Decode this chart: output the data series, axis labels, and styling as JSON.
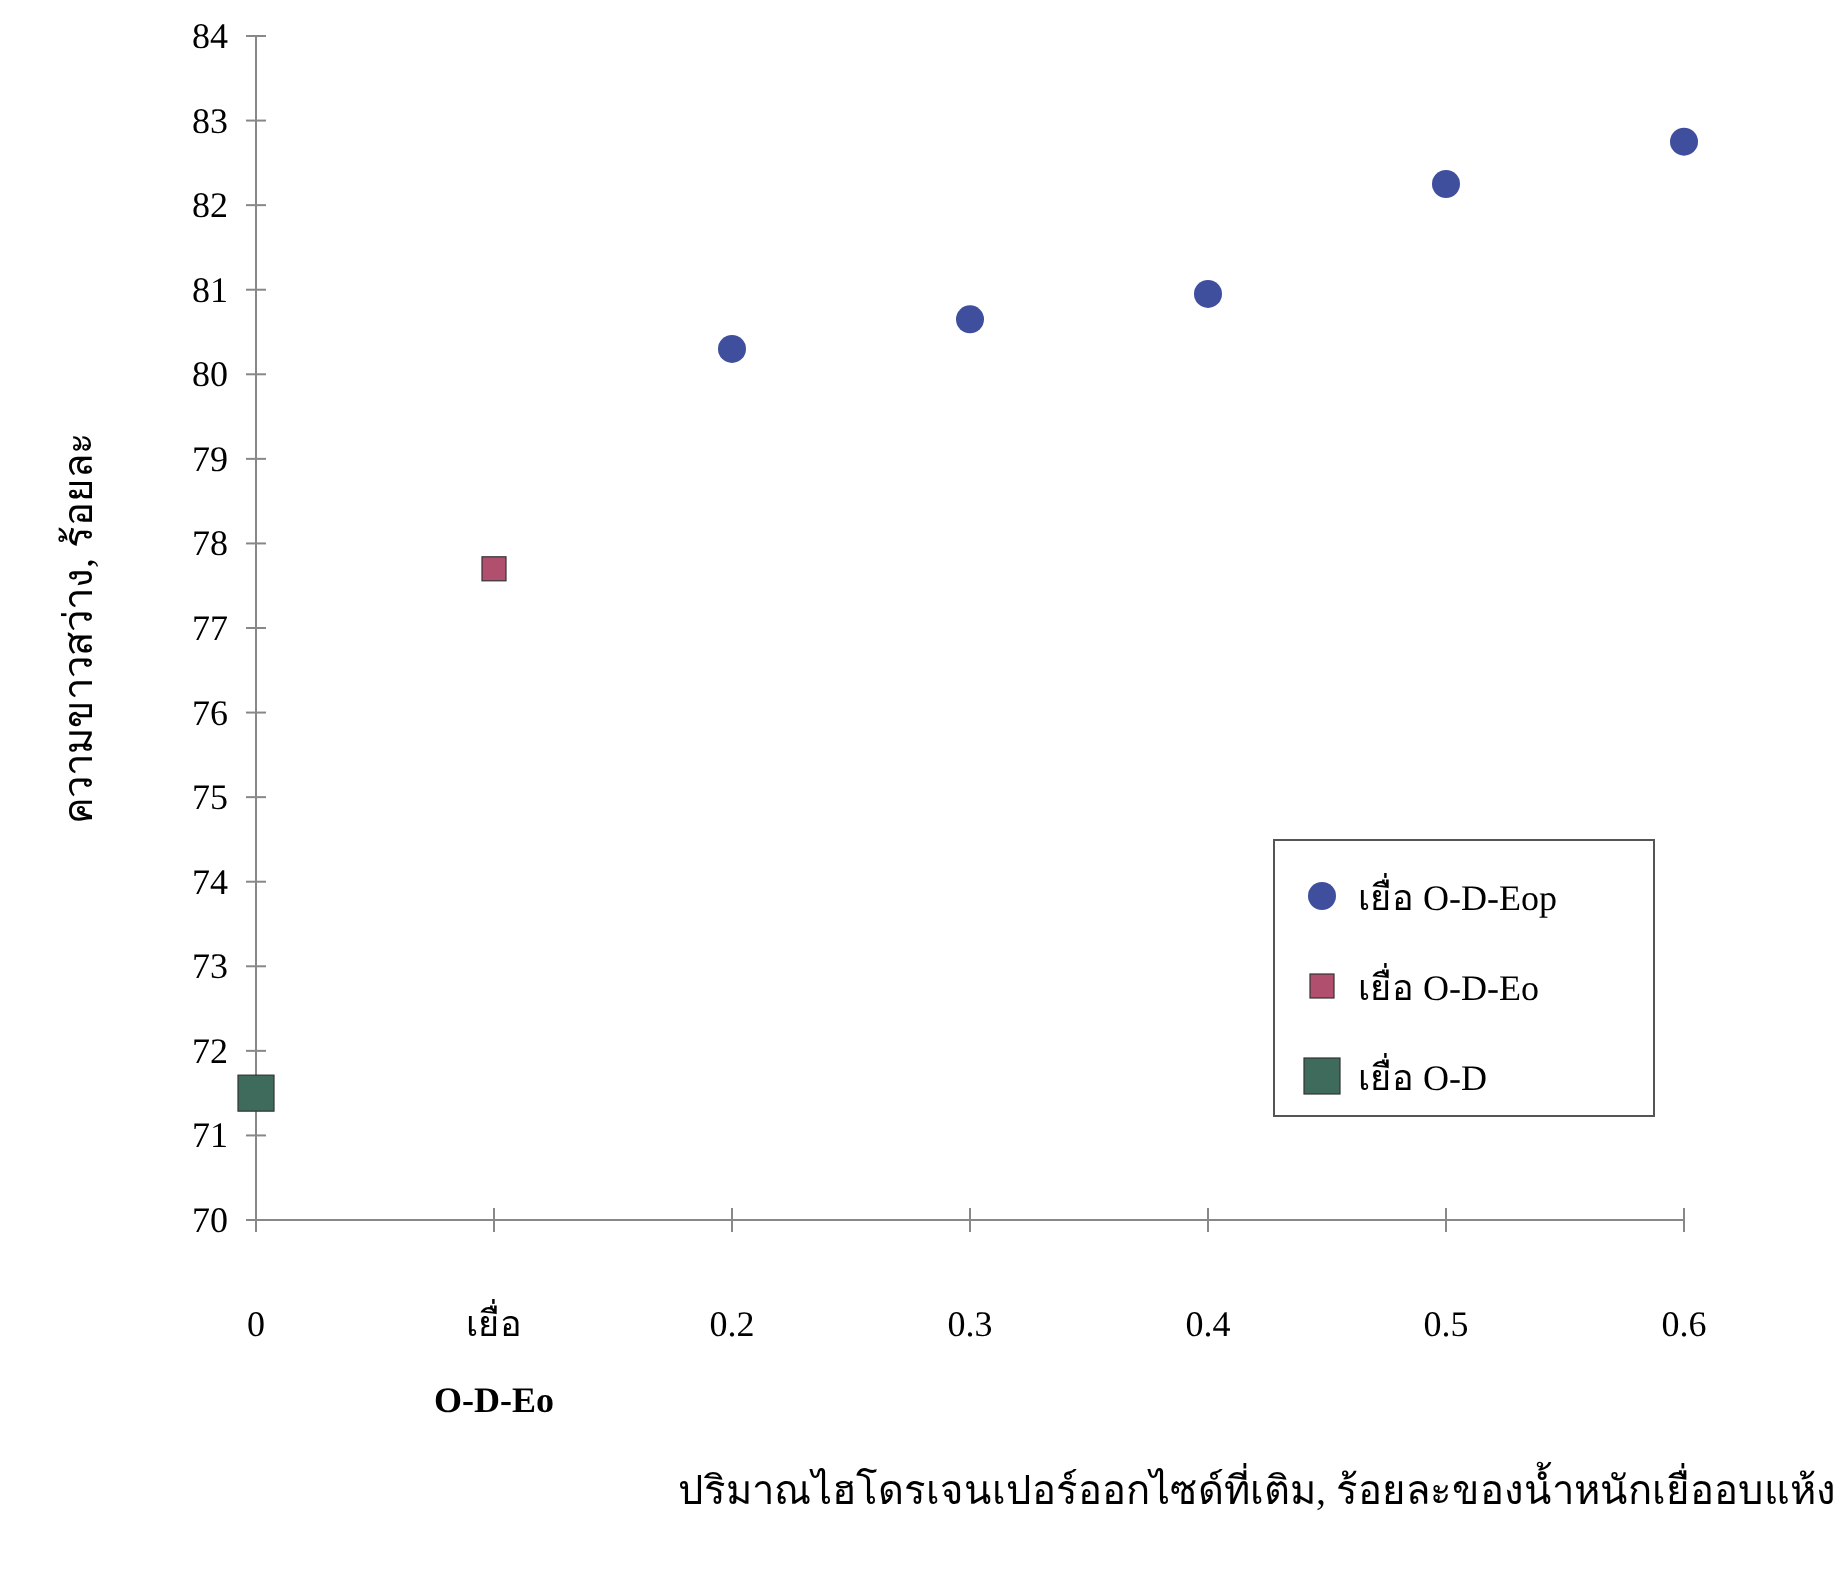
{
  "chart_data": {
    "type": "scatter",
    "xlabel": "ปริมาณไฮโดรเจนเปอร์ออกไซด์ที่เติม, ร้อยละของน้ำหนักเยื่ออบแห้ง",
    "ylabel": "ความขาวสว่าง, ร้อยละ",
    "xlim": [
      0,
      0.6
    ],
    "xticks": [
      0,
      {
        "value": 0.1,
        "label": "เยื่อ O-D-Eo"
      },
      0.2,
      0.3,
      0.4,
      0.5,
      0.6
    ],
    "ylim": [
      70,
      84
    ],
    "yticks": [
      70,
      71,
      72,
      73,
      74,
      75,
      76,
      77,
      78,
      79,
      80,
      81,
      82,
      83,
      84
    ],
    "grid": false,
    "legend": "right",
    "series": [
      {
        "name": "เยื่อ O-D-Eop",
        "color": "#3f4f9e",
        "marker": "circle",
        "x": [
          0.2,
          0.3,
          0.4,
          0.5,
          0.6
        ],
        "values": [
          80.3,
          80.65,
          80.95,
          82.25,
          82.75
        ]
      },
      {
        "name": "เยื่อ O-D-Eo",
        "color": "#b0506e",
        "marker": "square",
        "x": [
          0.1
        ],
        "values": [
          77.7
        ]
      },
      {
        "name": "เยื่อ O-D",
        "color": "#3f6b5c",
        "marker": "square",
        "x": [
          0
        ],
        "values": [
          71.5
        ]
      }
    ]
  }
}
